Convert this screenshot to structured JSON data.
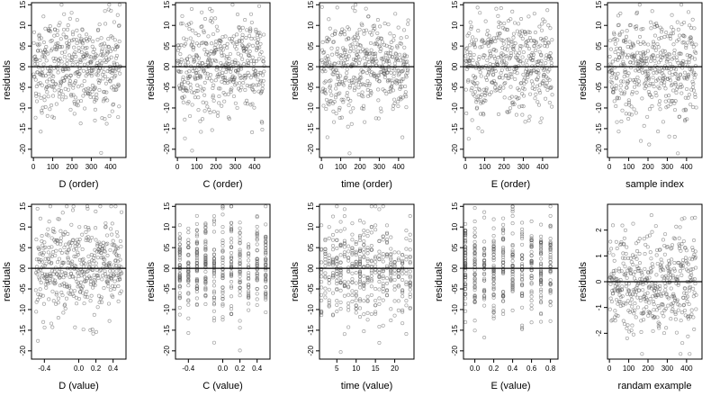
{
  "chart_data": [
    {
      "type": "scatter",
      "xlabel": "D (order)",
      "ylabel": "residuals",
      "xlim": [
        -10,
        480
      ],
      "ylim": [
        -2.2,
        1.55
      ],
      "x_ticks": [
        0,
        100,
        200,
        300,
        400
      ],
      "x_tick_labels": [
        "0",
        "100",
        "200",
        "300",
        "400"
      ],
      "y_ticks": [
        1.5,
        1.0,
        0.5,
        0.0,
        -0.5,
        -1.0,
        -1.5,
        -2.0
      ],
      "y_tick_labels": [
        "15",
        "10",
        "05",
        "00",
        "-05",
        "-10",
        "-15",
        "-20"
      ],
      "zero_line": true,
      "series": [
        {
          "x_range": [
            1,
            450
          ],
          "n": 450,
          "y_mean": 0.0,
          "y_sd": 0.6,
          "y_min": -2.1,
          "y_max": 1.5
        }
      ]
    },
    {
      "type": "scatter",
      "xlabel": "C (order)",
      "ylabel": "residuals",
      "xlim": [
        -10,
        480
      ],
      "ylim": [
        -2.2,
        1.55
      ],
      "x_ticks": [
        0,
        100,
        200,
        300,
        400
      ],
      "x_tick_labels": [
        "0",
        "100",
        "200",
        "300",
        "400"
      ],
      "y_ticks": [
        1.5,
        1.0,
        0.5,
        0.0,
        -0.5,
        -1.0,
        -1.5,
        -2.0
      ],
      "y_tick_labels": [
        "15",
        "10",
        "05",
        "00",
        "-05",
        "-10",
        "-15",
        "-20"
      ],
      "zero_line": true,
      "series": [
        {
          "x_range": [
            1,
            450
          ],
          "n": 450,
          "y_mean": 0.0,
          "y_sd": 0.6,
          "y_min": -2.1,
          "y_max": 1.5
        }
      ]
    },
    {
      "type": "scatter",
      "xlabel": "time (order)",
      "ylabel": "residuals",
      "xlim": [
        -10,
        480
      ],
      "ylim": [
        -2.2,
        1.55
      ],
      "x_ticks": [
        0,
        100,
        200,
        300,
        400
      ],
      "x_tick_labels": [
        "0",
        "100",
        "200",
        "300",
        "400"
      ],
      "y_ticks": [
        1.5,
        1.0,
        0.5,
        0.0,
        -0.5,
        -1.0,
        -1.5,
        -2.0
      ],
      "y_tick_labels": [
        "15",
        "10",
        "05",
        "00",
        "-05",
        "-10",
        "-15",
        "-20"
      ],
      "zero_line": true,
      "series": [
        {
          "x_range": [
            1,
            450
          ],
          "n": 450,
          "y_mean": 0.0,
          "y_sd": 0.6,
          "y_min": -2.1,
          "y_max": 1.5
        }
      ]
    },
    {
      "type": "scatter",
      "xlabel": "E (order)",
      "ylabel": "residuals",
      "xlim": [
        -10,
        480
      ],
      "ylim": [
        -2.2,
        1.55
      ],
      "x_ticks": [
        0,
        100,
        200,
        300,
        400
      ],
      "x_tick_labels": [
        "0",
        "100",
        "200",
        "300",
        "400"
      ],
      "y_ticks": [
        1.5,
        1.0,
        0.5,
        0.0,
        -0.5,
        -1.0,
        -1.5,
        -2.0
      ],
      "y_tick_labels": [
        "15",
        "10",
        "05",
        "00",
        "-05",
        "-10",
        "-15",
        "-20"
      ],
      "zero_line": true,
      "series": [
        {
          "x_range": [
            1,
            450
          ],
          "n": 450,
          "y_mean": 0.0,
          "y_sd": 0.6,
          "y_min": -2.1,
          "y_max": 1.5
        }
      ]
    },
    {
      "type": "scatter",
      "xlabel": "sample index",
      "ylabel": "residuals",
      "xlim": [
        -10,
        480
      ],
      "ylim": [
        -2.2,
        1.55
      ],
      "x_ticks": [
        0,
        100,
        200,
        300,
        400
      ],
      "x_tick_labels": [
        "0",
        "100",
        "200",
        "300",
        "400"
      ],
      "y_ticks": [
        1.5,
        1.0,
        0.5,
        0.0,
        -0.5,
        -1.0,
        -1.5,
        -2.0
      ],
      "y_tick_labels": [
        "15",
        "10",
        "05",
        "00",
        "-05",
        "-10",
        "-15",
        "-20"
      ],
      "zero_line": true,
      "series": [
        {
          "x_range": [
            1,
            450
          ],
          "n": 450,
          "y_mean": 0.0,
          "y_sd": 0.6,
          "y_min": -2.1,
          "y_max": 1.5
        }
      ]
    },
    {
      "type": "scatter",
      "xlabel": "D (value)",
      "ylabel": "residuals",
      "xlim": [
        -0.55,
        0.55
      ],
      "ylim": [
        -2.2,
        1.55
      ],
      "x_ticks": [
        -0.4,
        0.0,
        0.2,
        0.4
      ],
      "x_tick_labels": [
        "-0.4",
        "0.0",
        "0.2",
        "0.4"
      ],
      "y_ticks": [
        1.5,
        1.0,
        0.5,
        0.0,
        -0.5,
        -1.0,
        -1.5,
        -2.0
      ],
      "y_tick_labels": [
        "15",
        "10",
        "05",
        "00",
        "-05",
        "-10",
        "-15",
        "-20"
      ],
      "zero_line": true,
      "series": [
        {
          "x_range": [
            -0.5,
            0.5
          ],
          "n": 450,
          "y_mean": 0.0,
          "y_sd": 0.6,
          "y_min": -2.1,
          "y_max": 1.5
        }
      ]
    },
    {
      "type": "scatter",
      "xlabel": "C (value)",
      "ylabel": "residuals",
      "xlim": [
        -0.55,
        0.55
      ],
      "ylim": [
        -2.2,
        1.55
      ],
      "x_ticks": [
        -0.4,
        0.0,
        0.2,
        0.4
      ],
      "x_tick_labels": [
        "-0.4",
        "0.0",
        "0.2",
        "0.4"
      ],
      "y_ticks": [
        1.5,
        1.0,
        0.5,
        0.0,
        -0.5,
        -1.0,
        -1.5,
        -2.0
      ],
      "y_tick_labels": [
        "15",
        "10",
        "05",
        "00",
        "-05",
        "-10",
        "-15",
        "-20"
      ],
      "zero_line": true,
      "series": [
        {
          "x_levels": [
            -0.5,
            -0.4,
            -0.3,
            -0.2,
            -0.1,
            0.0,
            0.1,
            0.2,
            0.3,
            0.4,
            0.5
          ],
          "n": 450,
          "y_mean": 0.0,
          "y_sd": 0.6,
          "y_min": -2.1,
          "y_max": 1.5
        }
      ]
    },
    {
      "type": "scatter",
      "xlabel": "time (value)",
      "ylabel": "residuals",
      "xlim": [
        0.5,
        25
      ],
      "ylim": [
        -2.2,
        1.55
      ],
      "x_ticks": [
        5,
        10,
        15,
        20
      ],
      "x_tick_labels": [
        "5",
        "10",
        "15",
        "20"
      ],
      "y_ticks": [
        1.5,
        1.0,
        0.5,
        0.0,
        -0.5,
        -1.0,
        -1.5,
        -2.0
      ],
      "y_tick_labels": [
        "15",
        "10",
        "05",
        "00",
        "-05",
        "-10",
        "-15",
        "-20"
      ],
      "zero_line": true,
      "series": [
        {
          "x_levels": [
            1,
            2,
            3,
            4,
            5,
            6,
            7,
            8,
            9,
            10,
            11,
            12,
            13,
            14,
            15,
            16,
            17,
            18,
            19,
            20,
            21,
            22,
            23,
            24
          ],
          "n": 450,
          "y_mean": 0.0,
          "y_sd": 0.6,
          "y_min": -2.1,
          "y_max": 1.5
        }
      ]
    },
    {
      "type": "scatter",
      "xlabel": "E (value)",
      "ylabel": "residuals",
      "xlim": [
        -0.12,
        0.88
      ],
      "ylim": [
        -2.2,
        1.55
      ],
      "x_ticks": [
        0.0,
        0.2,
        0.4,
        0.6,
        0.8
      ],
      "x_tick_labels": [
        "0.0",
        "0.2",
        "0.4",
        "0.6",
        "0.8"
      ],
      "y_ticks": [
        1.5,
        1.0,
        0.5,
        0.0,
        -0.5,
        -1.0,
        -1.5,
        -2.0
      ],
      "y_tick_labels": [
        "15",
        "10",
        "05",
        "00",
        "-05",
        "-10",
        "-15",
        "-20"
      ],
      "zero_line": true,
      "series": [
        {
          "x_levels": [
            -0.1,
            0.0,
            0.1,
            0.2,
            0.3,
            0.4,
            0.5,
            0.6,
            0.7,
            0.8
          ],
          "n": 450,
          "y_mean": 0.0,
          "y_sd": 0.6,
          "y_min": -2.1,
          "y_max": 1.5
        }
      ]
    },
    {
      "type": "scatter",
      "xlabel": "randam example",
      "ylabel": "residuals",
      "xlim": [
        -10,
        480
      ],
      "ylim": [
        -3.0,
        3.0
      ],
      "x_ticks": [
        0,
        100,
        200,
        300,
        400
      ],
      "x_tick_labels": [
        "0",
        "100",
        "200",
        "300",
        "400"
      ],
      "y_ticks": [
        2,
        1,
        0,
        -1,
        -2
      ],
      "y_tick_labels": [
        "2",
        "1",
        "0",
        "-1",
        "-2"
      ],
      "zero_line": true,
      "series": [
        {
          "x_range": [
            1,
            450
          ],
          "n": 450,
          "y_mean": 0.0,
          "y_sd": 1.0,
          "y_min": -2.8,
          "y_max": 2.8
        }
      ]
    }
  ]
}
